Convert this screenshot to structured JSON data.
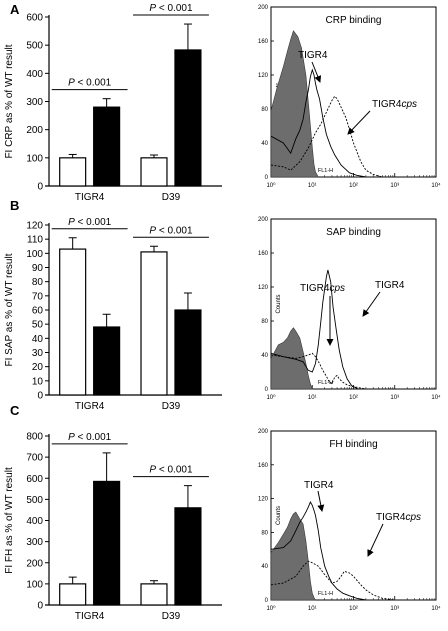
{
  "colors": {
    "wt_bar": "#ffffff",
    "mutant_bar": "#000000",
    "filled_histogram": "#6d6d6d",
    "outline": "#000000"
  },
  "chart_data": [
    {
      "panel": "A",
      "type": "bar",
      "ylabel": "FI CRP as % of WT result",
      "ylim": [
        0,
        600
      ],
      "yticks": [
        0,
        100,
        200,
        300,
        400,
        500,
        600
      ],
      "categories": [
        "TIGR4",
        "D39"
      ],
      "series": [
        {
          "values": [
            100,
            280
          ],
          "errors": [
            12,
            30
          ]
        },
        {
          "values": [
            100,
            483
          ],
          "errors": [
            10,
            92
          ]
        }
      ],
      "annotations": [
        {
          "group": 0,
          "text_before": "P",
          "text_after": " < 0.001"
        },
        {
          "group": 1,
          "text_before": "P",
          "text_after": " < 0.001"
        }
      ]
    },
    {
      "panel": "B",
      "type": "bar",
      "ylabel": "FI SAP as % of WT result",
      "ylim": [
        0,
        120
      ],
      "yticks": [
        0,
        10,
        20,
        30,
        40,
        50,
        60,
        70,
        80,
        90,
        100,
        110,
        120
      ],
      "categories": [
        "TIGR4",
        "D39"
      ],
      "series": [
        {
          "values": [
            103,
            48
          ],
          "errors": [
            8,
            9
          ]
        },
        {
          "values": [
            101,
            60
          ],
          "errors": [
            4,
            12
          ]
        }
      ],
      "annotations": [
        {
          "group": 0,
          "text_before": "P",
          "text_after": " < 0.001"
        },
        {
          "group": 1,
          "text_before": "P",
          "text_after": " < 0.001"
        }
      ]
    },
    {
      "panel": "C",
      "type": "bar",
      "ylabel": "FI FH as % of WT result",
      "ylim": [
        0,
        800
      ],
      "yticks": [
        0,
        100,
        200,
        300,
        400,
        500,
        600,
        700,
        800
      ],
      "categories": [
        "TIGR4",
        "D39"
      ],
      "series": [
        {
          "values": [
            100,
            585
          ],
          "errors": [
            32,
            135
          ]
        },
        {
          "values": [
            100,
            460
          ],
          "errors": [
            15,
            105
          ]
        }
      ],
      "annotations": [
        {
          "group": 0,
          "text_before": "P",
          "text_after": " < 0.001"
        },
        {
          "group": 1,
          "text_before": "P",
          "text_after": " < 0.001"
        }
      ]
    },
    {
      "panel": "A",
      "type": "area",
      "title": "CRP binding",
      "xlabel": "FL1-H",
      "ylabel": "Counts",
      "xscale": "log",
      "xlim": [
        1,
        10000
      ],
      "ylim": [
        0,
        200
      ],
      "yticks": [
        0,
        40,
        80,
        120,
        160,
        200
      ],
      "xticks": [
        "10⁰",
        "10¹",
        "10²",
        "10³",
        "10⁴"
      ],
      "annotations": [
        {
          "text": "TIGR4",
          "italic": ""
        },
        {
          "text": "TIGR4",
          "italic": "cps"
        }
      ],
      "series": [
        {
          "style": "filled",
          "x": [
            1,
            1.4,
            2,
            2.5,
            3,
            3.5,
            4.5,
            5.5,
            7,
            8.5,
            10,
            11,
            12,
            14
          ],
          "y": [
            78,
            105,
            130,
            148,
            162,
            172,
            165,
            152,
            120,
            75,
            35,
            15,
            6,
            0
          ]
        },
        {
          "style": "solid",
          "x": [
            1,
            2,
            3,
            4,
            5,
            6,
            7,
            8,
            9,
            10,
            11,
            12,
            13,
            15,
            18,
            22,
            28,
            35,
            50,
            80,
            120,
            200
          ],
          "y": [
            48,
            40,
            28,
            45,
            55,
            68,
            88,
            102,
            118,
            126,
            120,
            110,
            102,
            92,
            70,
            50,
            36,
            26,
            14,
            5,
            2,
            0
          ]
        },
        {
          "style": "dotted",
          "x": [
            1,
            2,
            3,
            5,
            8,
            12,
            16,
            20,
            25,
            30,
            35,
            40,
            50,
            65,
            80,
            100,
            150,
            200,
            300,
            500
          ],
          "y": [
            14,
            12,
            8,
            18,
            34,
            52,
            62,
            72,
            82,
            90,
            95,
            92,
            82,
            70,
            56,
            40,
            18,
            8,
            3,
            0
          ]
        }
      ]
    },
    {
      "panel": "B",
      "type": "area",
      "title": "SAP binding",
      "xlabel": "FL1-H",
      "ylabel": "Counts",
      "xscale": "log",
      "xlim": [
        1,
        10000
      ],
      "ylim": [
        0,
        200
      ],
      "yticks": [
        0,
        40,
        80,
        120,
        160,
        200
      ],
      "xticks": [
        "10⁰",
        "10¹",
        "10²",
        "10³",
        "10⁴"
      ],
      "annotations": [
        {
          "text": "TIGR4",
          "italic": "cps"
        },
        {
          "text": "TIGR4",
          "italic": ""
        }
      ],
      "series": [
        {
          "style": "filled",
          "x": [
            1,
            1.5,
            2,
            2.5,
            3,
            3.5,
            4,
            5,
            6,
            7,
            8,
            9,
            10
          ],
          "y": [
            36,
            52,
            55,
            60,
            68,
            72,
            68,
            60,
            44,
            30,
            16,
            6,
            0
          ]
        },
        {
          "style": "solid",
          "x": [
            1,
            2,
            4,
            6,
            8,
            10,
            12,
            14,
            16,
            18,
            20,
            22,
            24,
            28,
            32,
            38,
            45,
            55,
            70,
            90,
            130
          ],
          "y": [
            42,
            38,
            35,
            32,
            22,
            20,
            30,
            52,
            78,
            102,
            118,
            132,
            140,
            126,
            96,
            70,
            46,
            26,
            12,
            4,
            0
          ]
        },
        {
          "style": "dotted",
          "x": [
            1,
            2,
            4,
            6,
            8,
            10,
            12,
            15,
            18,
            22,
            26,
            30,
            35,
            40,
            45,
            55,
            70,
            90,
            120,
            200
          ],
          "y": [
            40,
            38,
            36,
            38,
            40,
            42,
            38,
            30,
            22,
            15,
            8,
            6,
            14,
            16,
            12,
            8,
            5,
            3,
            2,
            0
          ]
        }
      ]
    },
    {
      "panel": "C",
      "type": "area",
      "title": "FH binding",
      "xlabel": "FL1-H",
      "ylabel": "Counts",
      "xscale": "log",
      "xlim": [
        1,
        10000
      ],
      "ylim": [
        0,
        200
      ],
      "yticks": [
        0,
        40,
        80,
        120,
        160,
        200
      ],
      "xticks": [
        "10⁰",
        "10¹",
        "10²",
        "10³",
        "10⁴"
      ],
      "annotations": [
        {
          "text": "TIGR4",
          "italic": ""
        },
        {
          "text": "TIGR4",
          "italic": "cps"
        }
      ],
      "series": [
        {
          "style": "filled",
          "x": [
            1,
            1.5,
            2,
            2.5,
            3,
            3.5,
            4,
            5,
            6,
            7,
            8,
            9,
            10,
            11,
            12
          ],
          "y": [
            56,
            68,
            78,
            86,
            96,
            102,
            104,
            96,
            90,
            70,
            46,
            22,
            8,
            3,
            0
          ]
        },
        {
          "style": "solid",
          "x": [
            1,
            2,
            3,
            4,
            5,
            6,
            7,
            8,
            9,
            10,
            11,
            12,
            14,
            16,
            20,
            25,
            30,
            40,
            55,
            80,
            120,
            200
          ],
          "y": [
            60,
            62,
            70,
            82,
            92,
            98,
            104,
            110,
            116,
            112,
            106,
            100,
            82,
            62,
            40,
            28,
            20,
            13,
            8,
            5,
            2,
            0
          ]
        },
        {
          "style": "dotted",
          "x": [
            1,
            2,
            4,
            6,
            8,
            10,
            14,
            20,
            30,
            40,
            50,
            60,
            80,
            100,
            150,
            200,
            300,
            500,
            1000
          ],
          "y": [
            18,
            20,
            28,
            40,
            46,
            44,
            40,
            30,
            20,
            22,
            28,
            34,
            32,
            28,
            18,
            12,
            6,
            2,
            0
          ]
        }
      ]
    }
  ]
}
